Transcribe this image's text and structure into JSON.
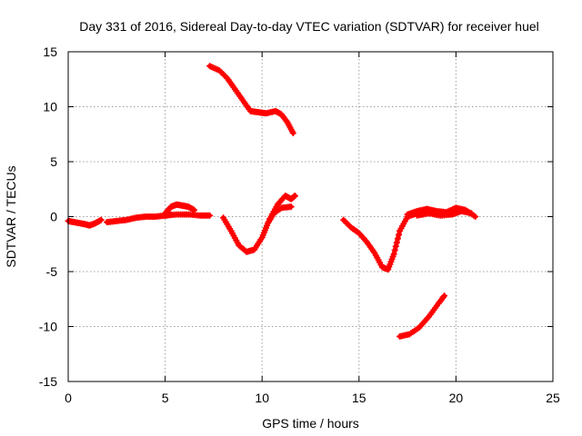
{
  "chart_data": {
    "type": "line",
    "title": "Day 331 of 2016, Sidereal Day-to-day VTEC variation (SDTVAR) for receiver huel",
    "xlabel": "GPS time / hours",
    "ylabel": "SDTVAR / TECUs",
    "xlim": [
      0,
      25
    ],
    "ylim": [
      -15,
      15
    ],
    "xticks": [
      0,
      5,
      10,
      15,
      20,
      25
    ],
    "yticks": [
      -15,
      -10,
      -5,
      0,
      5,
      10,
      15
    ],
    "xtick_labels": [
      "0",
      "5",
      "10",
      "15",
      "20",
      "25"
    ],
    "ytick_labels": [
      "-15",
      "-10",
      "-5",
      "0",
      "5",
      "10",
      "15"
    ],
    "grid": true,
    "series_color": "#ff0000",
    "series": [
      {
        "name": "arc-1",
        "x": [
          0.0,
          0.3,
          0.6,
          0.9,
          1.1,
          1.4,
          1.7
        ],
        "y": [
          -0.4,
          -0.5,
          -0.6,
          -0.7,
          -0.8,
          -0.6,
          -0.3
        ]
      },
      {
        "name": "arc-2",
        "x": [
          2.0,
          2.5,
          3.0,
          3.5,
          4.0,
          4.5,
          5.0,
          5.3
        ],
        "y": [
          -0.5,
          -0.4,
          -0.3,
          -0.1,
          0.0,
          0.0,
          0.1,
          0.2
        ]
      },
      {
        "name": "arc-3",
        "x": [
          5.0,
          5.3,
          5.6,
          5.9,
          6.2,
          6.5
        ],
        "y": [
          0.3,
          0.9,
          1.1,
          1.0,
          0.9,
          0.6
        ]
      },
      {
        "name": "arc-4",
        "x": [
          5.0,
          5.6,
          6.2,
          6.8,
          7.3
        ],
        "y": [
          0.1,
          0.2,
          0.2,
          0.1,
          0.1
        ]
      },
      {
        "name": "arc-5",
        "x": [
          7.3,
          7.8,
          8.2,
          8.6,
          9.0,
          9.4,
          9.8,
          10.2,
          10.7,
          11.0,
          11.3,
          11.6
        ],
        "y": [
          13.7,
          13.3,
          12.6,
          11.6,
          10.6,
          9.6,
          9.5,
          9.4,
          9.6,
          9.3,
          8.6,
          7.6
        ]
      },
      {
        "name": "arc-6",
        "x": [
          8.0,
          8.4,
          8.8,
          9.2,
          9.6,
          10.0,
          10.3,
          10.6,
          11.0,
          11.5
        ],
        "y": [
          -0.1,
          -1.3,
          -2.6,
          -3.2,
          -3.0,
          -1.9,
          -0.6,
          0.3,
          0.8,
          0.9
        ]
      },
      {
        "name": "arc-7",
        "x": [
          10.4,
          10.8,
          11.2,
          11.5,
          11.7
        ],
        "y": [
          -0.2,
          1.1,
          1.9,
          1.6,
          1.9
        ]
      },
      {
        "name": "arc-8",
        "x": [
          14.2,
          14.6,
          15.0,
          15.4,
          15.8,
          16.2,
          16.5,
          16.8,
          17.1,
          17.5,
          18.0
        ],
        "y": [
          -0.3,
          -1.0,
          -1.5,
          -2.3,
          -3.3,
          -4.6,
          -4.8,
          -3.4,
          -1.3,
          0.0,
          0.3
        ]
      },
      {
        "name": "arc-9",
        "x": [
          17.5,
          18.0,
          18.5,
          19.0,
          19.5,
          20.0,
          20.5,
          21.0
        ],
        "y": [
          0.2,
          0.5,
          0.7,
          0.5,
          0.4,
          0.8,
          0.6,
          0.0
        ]
      },
      {
        "name": "arc-10",
        "x": [
          18.0,
          18.6,
          19.2,
          19.8,
          20.3,
          20.8
        ],
        "y": [
          0.1,
          0.3,
          0.1,
          0.2,
          0.5,
          0.3
        ]
      },
      {
        "name": "arc-11",
        "x": [
          17.1,
          17.6,
          18.1,
          18.6,
          19.1,
          19.4
        ],
        "y": [
          -10.9,
          -10.7,
          -10.1,
          -9.1,
          -7.9,
          -7.2
        ]
      }
    ]
  }
}
